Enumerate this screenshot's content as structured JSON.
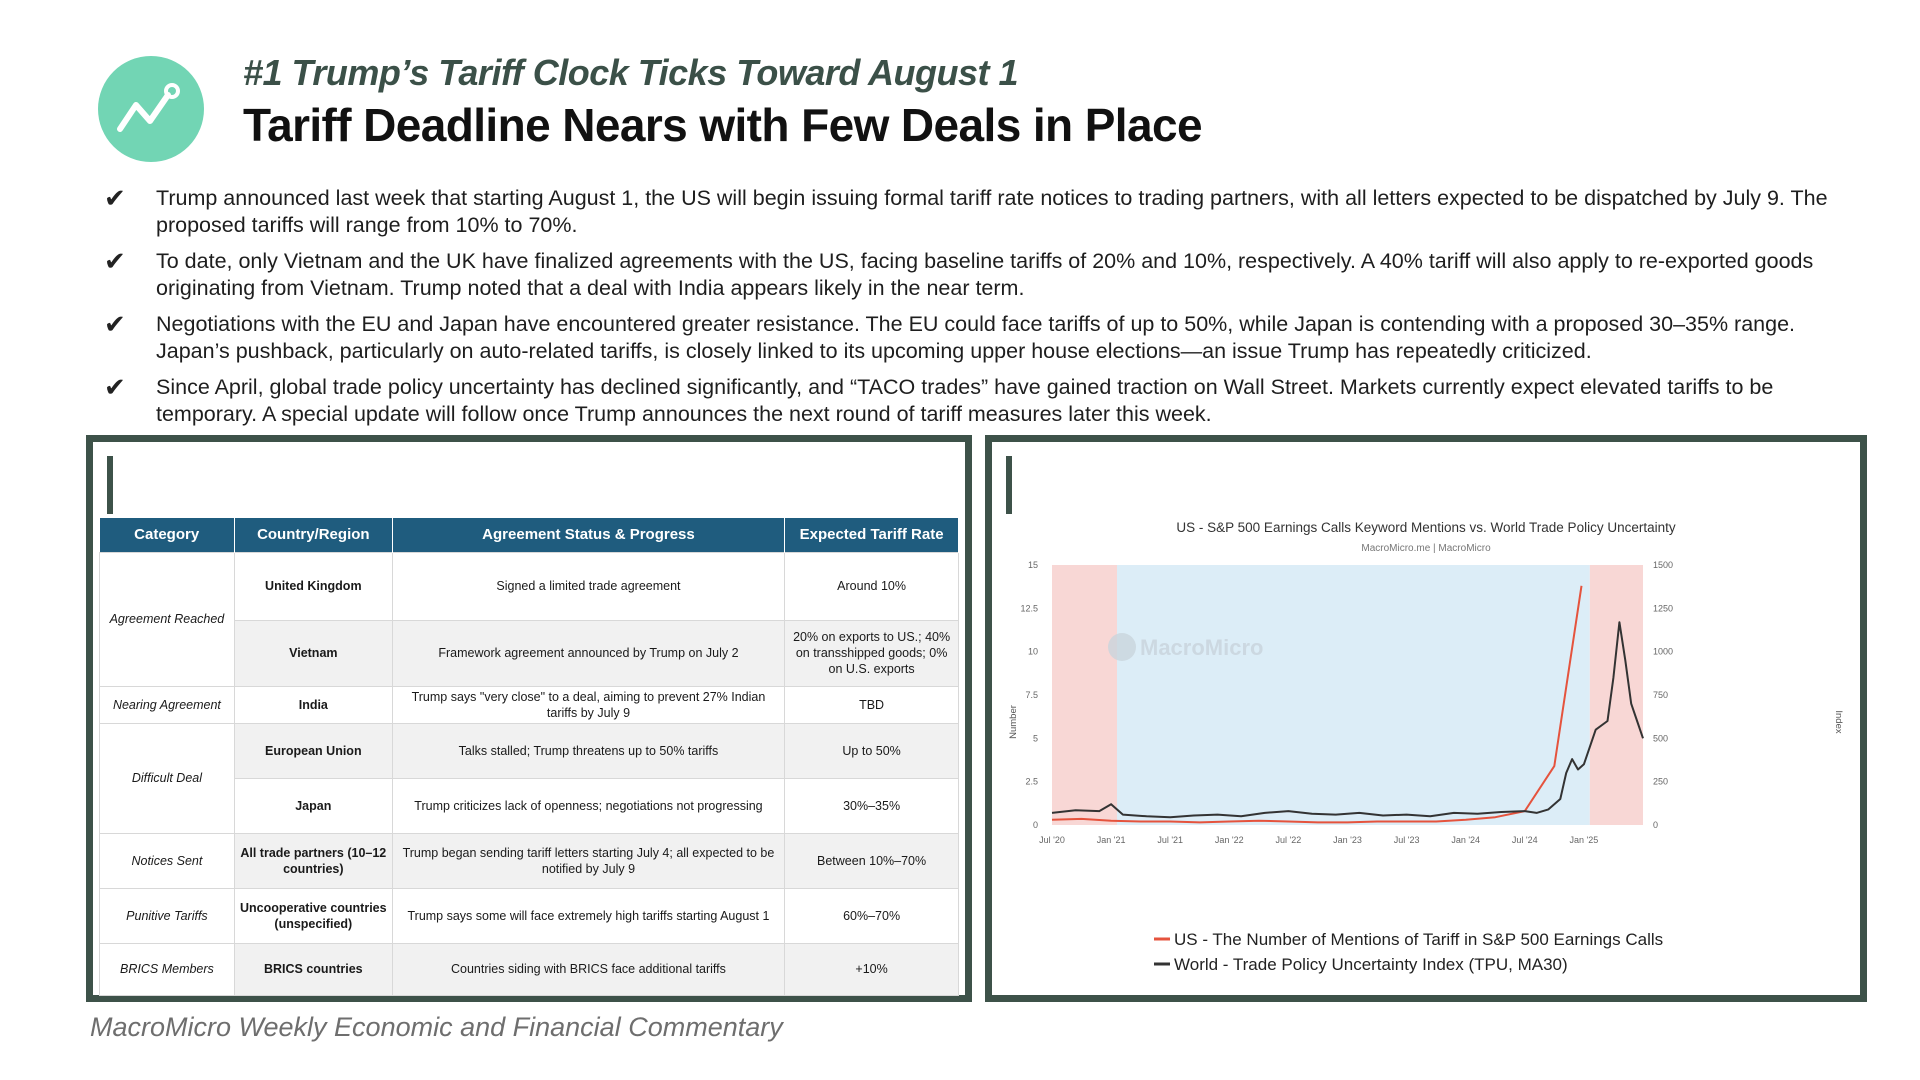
{
  "header": {
    "subtitle": "#1 Trump’s Tariff Clock Ticks Toward August 1",
    "title": "Tariff Deadline Nears with Few Deals in Place",
    "logo_icon": "chart-line-icon"
  },
  "bullets": [
    {
      "check": "✔",
      "text": "Trump announced last week that starting August 1, the US will begin issuing formal tariff rate notices to trading partners, with all letters expected to be dispatched by July 9. The proposed tariffs will range from 10% to 70%."
    },
    {
      "check": "✔",
      "text": "To date, only Vietnam and the UK have finalized agreements with the US, facing baseline tariffs of 20% and 10%, respectively. A 40% tariff will also apply to re-exported goods originating from Vietnam. Trump noted that a deal with India appears likely in the near term."
    },
    {
      "check": "✔",
      "text": "Negotiations with the EU and Japan have encountered greater resistance. The EU could face tariffs of up to 50%, while Japan is contending with a proposed 30–35% range. Japan’s pushback, particularly on auto-related tariffs, is closely linked to its upcoming upper house elections—an issue Trump has repeatedly criticized."
    },
    {
      "check": "✔",
      "text": "Since April, global trade policy uncertainty has declined significantly, and “TACO trades” have gained traction on Wall Street. Markets currently expect elevated tariffs to be temporary. A special update will follow once Trump announces the next round of tariff measures later this week."
    }
  ],
  "table": {
    "headers": [
      "Category",
      "Country/Region",
      "Agreement Status & Progress",
      "Expected Tariff Rate"
    ],
    "categories": [
      "Agreement Reached",
      "Nearing Agreement",
      "Difficult Deal",
      "Notices Sent",
      "Punitive Tariffs",
      "BRICS Members"
    ],
    "rows": [
      {
        "country": "United Kingdom",
        "status": "Signed a limited trade agreement",
        "rate": "Around 10%"
      },
      {
        "country": "Vietnam",
        "status": "Framework agreement announced by Trump on July 2",
        "rate": "20% on exports to US.; 40% on transshipped goods; 0% on U.S. exports"
      },
      {
        "country": "India",
        "status": "Trump says \"very close\" to a deal, aiming to prevent 27% Indian tariffs by July 9",
        "rate": "TBD"
      },
      {
        "country": "European Union",
        "status": "Talks stalled; Trump threatens up to 50% tariffs",
        "rate": "Up to 50%"
      },
      {
        "country": "Japan",
        "status": "Trump criticizes lack of openness; negotiations not progressing",
        "rate": "30%–35%"
      },
      {
        "country": "All trade partners (10–12 countries)",
        "status": "Trump began sending tariff letters starting July 4; all expected to be notified by July 9",
        "rate": "Between 10%–70%"
      },
      {
        "country": "Uncooperative countries (unspecified)",
        "status": "Trump says some will face extremely high tariffs starting August 1",
        "rate": "60%–70%"
      },
      {
        "country": "BRICS countries",
        "status": "Countries siding with BRICS face additional tariffs",
        "rate": "+10%"
      }
    ]
  },
  "chart_data": {
    "type": "line",
    "title": "US - S&P 500 Earnings Calls Keyword Mentions vs. World Trade Policy Uncertainty",
    "subtitle": "MacroMicro.me | MacroMicro",
    "watermark": "MacroMicro",
    "ylabel_left": "Number",
    "ylabel_right": "Index",
    "ylim_left": [
      0,
      15
    ],
    "ylim_right": [
      0,
      1500
    ],
    "yticks_left": [
      "0",
      "2.5",
      "5",
      "7.5",
      "10",
      "12.5",
      "15"
    ],
    "yticks_right": [
      "0",
      "250",
      "500",
      "750",
      "1000",
      "1250",
      "1500"
    ],
    "xticks": [
      "Jul '20",
      "Jan '21",
      "Jul '21",
      "Jan '22",
      "Jul '22",
      "Jan '23",
      "Jul '23",
      "Jan '24",
      "Jul '24",
      "Jan '25"
    ],
    "shaded_regions": [
      {
        "from": 2020.5,
        "to": 2021.05,
        "color": "#f8d7d5"
      },
      {
        "from": 2021.05,
        "to": 2025.05,
        "color": "#dcedf7"
      },
      {
        "from": 2025.05,
        "to": 2025.5,
        "color": "#f8d7d5"
      }
    ],
    "series": [
      {
        "name": "US - The Number of Mentions of Tariff in S&P 500 Earnings Calls",
        "axis": "left",
        "color": "#e5533d",
        "x": [
          2020.5,
          2020.75,
          2021.0,
          2021.25,
          2021.5,
          2021.75,
          2022.0,
          2022.25,
          2022.5,
          2022.75,
          2023.0,
          2023.25,
          2023.5,
          2023.75,
          2024.0,
          2024.25,
          2024.5,
          2024.75,
          2024.98
        ],
        "values": [
          0.3,
          0.35,
          0.25,
          0.2,
          0.2,
          0.15,
          0.2,
          0.25,
          0.2,
          0.15,
          0.15,
          0.2,
          0.2,
          0.2,
          0.3,
          0.45,
          0.8,
          3.4,
          13.8
        ]
      },
      {
        "name": "World - Trade Policy Uncertainty Index (TPU, MA30)",
        "axis": "right",
        "color": "#333333",
        "x": [
          2020.5,
          2020.7,
          2020.9,
          2021.0,
          2021.1,
          2021.3,
          2021.5,
          2021.7,
          2021.9,
          2022.1,
          2022.3,
          2022.5,
          2022.7,
          2022.9,
          2023.1,
          2023.3,
          2023.5,
          2023.7,
          2023.9,
          2024.1,
          2024.3,
          2024.5,
          2024.6,
          2024.7,
          2024.8,
          2024.85,
          2024.9,
          2024.95,
          2025.0,
          2025.1,
          2025.2,
          2025.25,
          2025.3,
          2025.35,
          2025.4,
          2025.45,
          2025.5
        ],
        "values": [
          70,
          85,
          80,
          120,
          60,
          50,
          45,
          55,
          60,
          50,
          70,
          80,
          65,
          60,
          70,
          55,
          60,
          50,
          70,
          65,
          75,
          80,
          70,
          90,
          150,
          300,
          380,
          320,
          350,
          550,
          600,
          850,
          1170,
          950,
          700,
          600,
          500
        ]
      }
    ]
  },
  "footer": "MacroMicro Weekly Economic and Financial Commentary"
}
